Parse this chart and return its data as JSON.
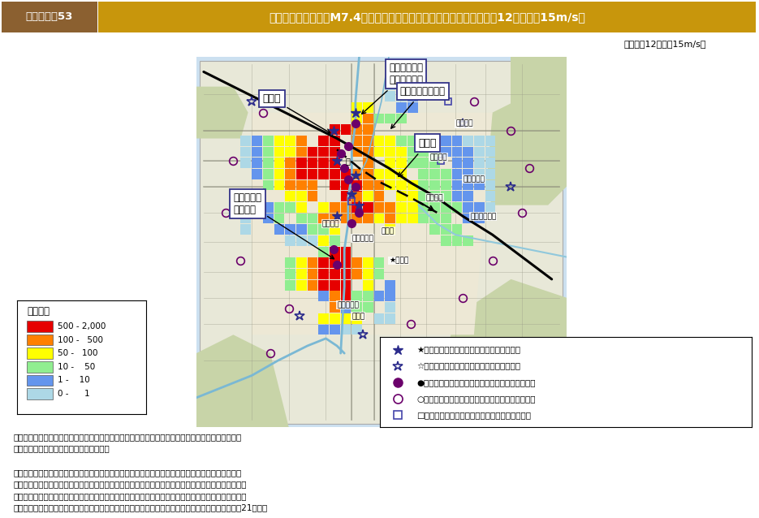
{
  "title_label": "図２－３－53",
  "title_text": "花折断層帯の地震（M7.4）時の火災延焼分布と文化遺産の位置（冬昼12時，風速15m/s）",
  "subtitle": "（冬の昼12時風速15m/s）",
  "note1_line1": "（注１）一つの文化遺産の中に複数の国宝・重要文化財（建造物）が存在する場合は，代表的な名称",
  "note1_line2": "　　　　のみを表記している場合がある。",
  "note2_line1": "（注２）火災シミュレーションで焼失棟数分布を推計した結果と重ね合わせ，当該地震で発生する火",
  "note2_line2": "　　　　災によって一般の建物の焼失があると推定されるメッシュに所在する国宝・重要文化財（建造",
  "note2_line3": "　　　　物）及び世界文化遺産を表示しており，個別の文化遺産が火災により焼失することを意味して",
  "note2_line4": "　　　　いるわけではないことに留意する必要がある。　　　　　　　　　　出典：中央防災会議第21回資料",
  "legend_labels": [
    "500 - 2,000",
    "100 -   500",
    "50 -   100",
    "10 -    50",
    "1 -    10",
    "0 -      1"
  ],
  "legend_colors_list": [
    "#e60000",
    "#ff8000",
    "#ffff00",
    "#90ee90",
    "#6495ed",
    "#add8e6"
  ],
  "marker_legend": [
    [
      "star_filled",
      "#2b2b8b",
      "★国宝：一般の建物の焼失があるメッシュ内"
    ],
    [
      "star_open",
      "#2b2b8b",
      "☆国宝：一般の建物の焼失があるメッシュ外"
    ],
    [
      "circle_filled",
      "#6b006b",
      "●重要文化財：一般の建物の焼失があるメッシュ内"
    ],
    [
      "circle_open",
      "#6b006b",
      "○重要文化財：一般の建物の焼失があるメッシュ外"
    ],
    [
      "square_open",
      "#4444aa",
      "□世界遺産：一般の建物の焼失があるメッシュ内"
    ]
  ],
  "title_label_color": "#5a3e1b",
  "title_bg_color": "#b8860b",
  "map_outer_bg": "#cce0f0",
  "map_land_bg": "#e8e8d8",
  "map_border_color": "#888888"
}
